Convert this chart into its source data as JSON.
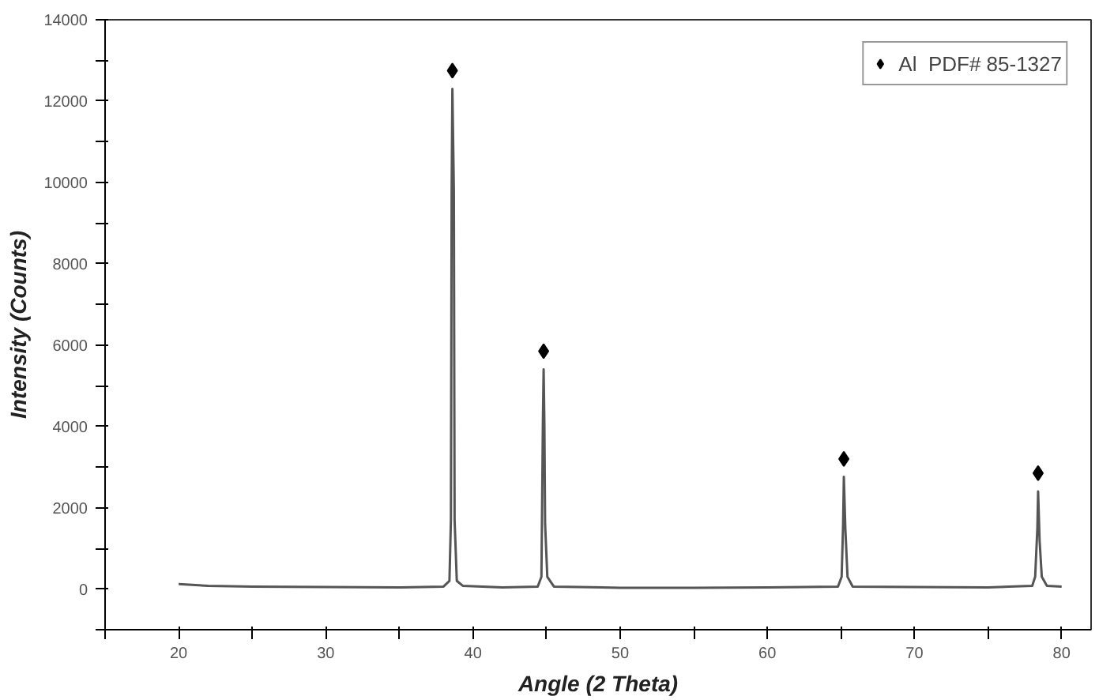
{
  "chart_data": {
    "type": "line",
    "xlabel": "Angle (2 Theta)",
    "ylabel": "Intensity (Counts)",
    "xlim": [
      15,
      82
    ],
    "ylim": [
      -1000,
      14000
    ],
    "xticks": [
      {
        "value": 15,
        "label": null
      },
      20,
      {
        "value": 25,
        "label": null
      },
      30,
      {
        "value": 35,
        "label": null
      },
      40,
      {
        "value": 45,
        "label": null
      },
      50,
      {
        "value": 55,
        "label": null
      },
      60,
      {
        "value": 65,
        "label": null
      },
      70,
      {
        "value": 75,
        "label": null
      },
      80
    ],
    "yticks": [
      {
        "value": -1000,
        "label": null
      },
      0,
      {
        "value": 1000,
        "label": null
      },
      2000,
      {
        "value": 3000,
        "label": null
      },
      4000,
      {
        "value": 5000,
        "label": null
      },
      6000,
      {
        "value": 7000,
        "label": null
      },
      8000,
      {
        "value": 9000,
        "label": null
      },
      10000,
      {
        "value": 11000,
        "label": null
      },
      12000,
      {
        "value": 13000,
        "label": null
      },
      14000
    ],
    "grid": false,
    "legend": "top right",
    "series": [
      {
        "color": "#555555",
        "x": [
          20,
          22,
          25,
          30,
          35,
          38,
          38.4,
          38.5,
          38.55,
          38.6,
          38.7,
          38.75,
          38.9,
          39.3,
          42,
          44.4,
          44.65,
          44.75,
          44.8,
          44.85,
          44.9,
          45.05,
          45.5,
          50,
          55,
          60,
          64.8,
          65.05,
          65.15,
          65.2,
          65.3,
          65.45,
          65.8,
          70,
          75,
          78.0,
          78.2,
          78.35,
          78.4,
          78.5,
          78.65,
          79,
          80
        ],
        "values": [
          120,
          80,
          60,
          50,
          40,
          60,
          200,
          1700,
          9800,
          12300,
          9800,
          1700,
          200,
          80,
          40,
          60,
          300,
          4100,
          5400,
          4100,
          1600,
          300,
          60,
          30,
          30,
          40,
          60,
          300,
          1600,
          2760,
          1500,
          300,
          60,
          50,
          40,
          80,
          300,
          1500,
          2400,
          1200,
          300,
          80,
          60
        ]
      },
      {
        "type": "scatter",
        "name": "Al  PDF# 85-1327",
        "color": "#000000",
        "marker": "diamond",
        "x": [
          38.6,
          44.8,
          65.2,
          78.4
        ],
        "values": [
          12750,
          5850,
          3200,
          2850
        ]
      }
    ]
  }
}
